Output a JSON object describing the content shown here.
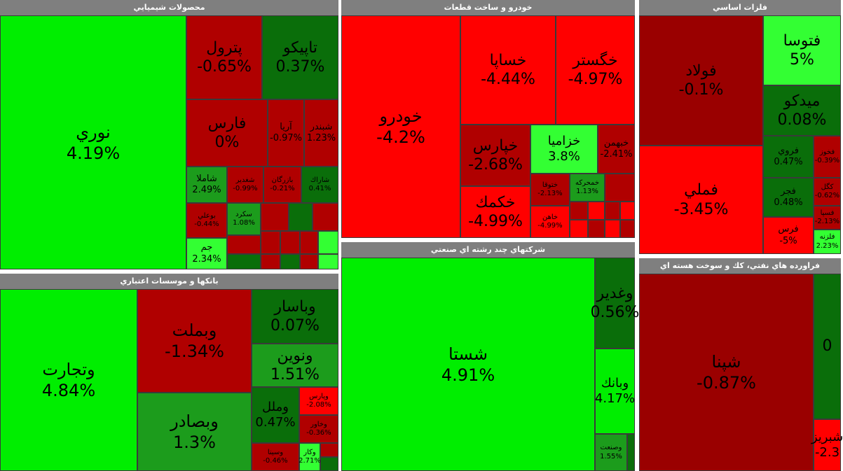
{
  "colors": {
    "strong_red": "#ff0000",
    "dark_red": "#b00000",
    "bright_green": "#00ee00",
    "dark_green": "#0a6e0a",
    "header_gray": "#7f7f7f"
  },
  "panels": {
    "chemical": {
      "title": "محصولات شيميايي",
      "tiles": [
        {
          "name": "نوري",
          "change": "4.19%"
        },
        {
          "name": "پترول",
          "change": "-0.65%"
        },
        {
          "name": "تاپيکو",
          "change": "0.37%"
        },
        {
          "name": "فارس",
          "change": "0%"
        },
        {
          "name": "آريا",
          "change": "-0.97%"
        },
        {
          "name": "شبندر",
          "change": "1.23%"
        },
        {
          "name": "شاملا",
          "change": "2.49%"
        },
        {
          "name": "شغدير",
          "change": "-0.99%"
        },
        {
          "name": "بازرگان",
          "change": "-0.21%"
        },
        {
          "name": "شاراك",
          "change": "0.41%"
        },
        {
          "name": "بوعلي",
          "change": "-0.44%"
        },
        {
          "name": "سكرد",
          "change": "1.08%"
        },
        {
          "name": "جم",
          "change": "2.34%"
        }
      ]
    },
    "auto": {
      "title": "خودرو و ساخت قطعات",
      "tiles": [
        {
          "name": "خودرو",
          "change": "-4.2%"
        },
        {
          "name": "خساپا",
          "change": "-4.44%"
        },
        {
          "name": "خگستر",
          "change": "-4.97%"
        },
        {
          "name": "خپارس",
          "change": "-2.68%"
        },
        {
          "name": "خزاميا",
          "change": "3.8%"
        },
        {
          "name": "خبهمن",
          "change": "-2.41%"
        },
        {
          "name": "خكمك",
          "change": "-4.99%"
        },
        {
          "name": "ختوقا",
          "change": "-2.13%"
        },
        {
          "name": "خمحركه",
          "change": "1.13%"
        },
        {
          "name": "خاهن",
          "change": "-4.99%"
        }
      ]
    },
    "metals": {
      "title": "فلزات اساسي",
      "tiles": [
        {
          "name": "فولاد",
          "change": "-0.1%"
        },
        {
          "name": "فتوسا",
          "change": "5%"
        },
        {
          "name": "ميدكو",
          "change": "0.08%"
        },
        {
          "name": "فروي",
          "change": "0.47%"
        },
        {
          "name": "فجر",
          "change": "0.48%"
        },
        {
          "name": "فملي",
          "change": "-3.45%"
        },
        {
          "name": "فرس",
          "change": "-5%"
        },
        {
          "name": "فلزنه",
          "change": "2.23%"
        },
        {
          "name": "فخوز",
          "change": "-0.39%"
        },
        {
          "name": "كگل",
          "change": "-0.62%"
        },
        {
          "name": "فسپا",
          "change": "-2.13%"
        }
      ]
    },
    "banks": {
      "title": "بانکها و موسسات اعتباري",
      "tiles": [
        {
          "name": "وتجارت",
          "change": "4.84%"
        },
        {
          "name": "وبملت",
          "change": "-1.34%"
        },
        {
          "name": "وباسار",
          "change": "0.07%"
        },
        {
          "name": "ونوين",
          "change": "1.51%"
        },
        {
          "name": "وبصادر",
          "change": "1.3%"
        },
        {
          "name": "وملل",
          "change": "0.47%"
        },
        {
          "name": "وپارس",
          "change": "-2.08%"
        },
        {
          "name": "وخاور",
          "change": "-0.36%"
        },
        {
          "name": "وسينا",
          "change": "-0.46%"
        },
        {
          "name": "وكار",
          "change": "2.71%"
        }
      ]
    },
    "multi": {
      "title": "شرکتهاي چند رشته اي صنعتي",
      "tiles": [
        {
          "name": "شستا",
          "change": "4.91%"
        },
        {
          "name": "وغدير",
          "change": "0.56%"
        },
        {
          "name": "وبانك",
          "change": "4.17%"
        },
        {
          "name": "وصنعت",
          "change": "1.55%"
        }
      ]
    },
    "petroleum": {
      "title": "فراورده هاي نفتي، كك و سوخت هسته اي",
      "tiles": [
        {
          "name": "شپنا",
          "change": "-0.87%"
        },
        {
          "name": "",
          "change": "0"
        },
        {
          "name": "شبريز",
          "change": "-2.3"
        }
      ]
    }
  }
}
